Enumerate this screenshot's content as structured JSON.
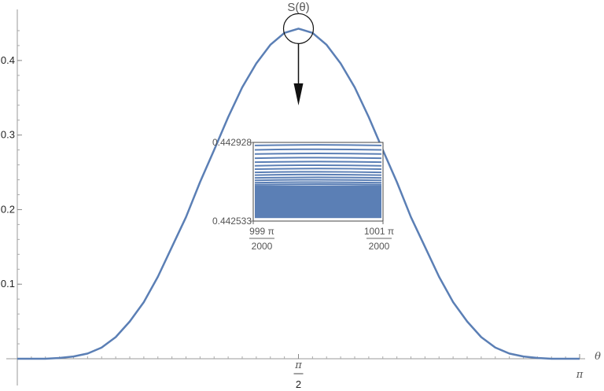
{
  "chart_data": [
    {
      "type": "line",
      "title": "",
      "xlabel": "θ",
      "ylabel": "",
      "xlim": [
        0,
        3.14159
      ],
      "ylim": [
        0,
        0.46
      ],
      "x_ticks": [
        {
          "value": 1.5708,
          "num": "π",
          "den": "2"
        },
        {
          "value": 3.14159,
          "label": "π"
        }
      ],
      "y_ticks": [
        {
          "value": 0.1,
          "label": "0.1"
        },
        {
          "value": 0.2,
          "label": "0.2"
        },
        {
          "value": 0.3,
          "label": "0.3"
        },
        {
          "value": 0.4,
          "label": "0.4"
        }
      ],
      "series": [
        {
          "color": "#5b7fb5",
          "x": [
            0.0,
            0.0785,
            0.1571,
            0.2356,
            0.3142,
            0.3927,
            0.4712,
            0.5498,
            0.6283,
            0.7069,
            0.7854,
            0.864,
            0.9425,
            1.0211,
            1.0996,
            1.1781,
            1.2566,
            1.3352,
            1.4137,
            1.4923,
            1.5708,
            1.6493,
            1.7279,
            1.8064,
            1.885,
            1.9635,
            2.042,
            2.1206,
            2.1991,
            2.2777,
            2.3562,
            2.4347,
            2.5133,
            2.5918,
            2.6704,
            2.7489,
            2.8274,
            2.906,
            2.9845,
            3.0631,
            3.1416
          ],
          "y": [
            0.0,
            0.0,
            0.0,
            0.001,
            0.003,
            0.007,
            0.015,
            0.029,
            0.05,
            0.076,
            0.11,
            0.15,
            0.19,
            0.237,
            0.28,
            0.324,
            0.364,
            0.396,
            0.421,
            0.437,
            0.4427,
            0.437,
            0.421,
            0.396,
            0.364,
            0.324,
            0.28,
            0.237,
            0.19,
            0.15,
            0.11,
            0.076,
            0.05,
            0.029,
            0.015,
            0.007,
            0.003,
            0.001,
            0.0,
            0.0,
            0.0
          ]
        }
      ],
      "annotation": {
        "label": "S(θ)",
        "at": {
          "x": 1.5708,
          "y": 0.4427
        }
      }
    },
    {
      "type": "line",
      "title": "",
      "xlabel": "",
      "ylabel": "",
      "xlim": [
        1.56922,
        1.57237
      ],
      "ylim": [
        0.442533,
        0.442928
      ],
      "x_ticks": [
        {
          "value": 1.56922,
          "num": "999 π",
          "den": "2000"
        },
        {
          "value": 1.57237,
          "num": "1001 π",
          "den": "2000"
        }
      ],
      "y_ticks": [
        {
          "value": 0.442928,
          "label": "0.442928"
        },
        {
          "value": 0.442533,
          "label": "0.442533"
        }
      ],
      "series": [
        {
          "color": "#5b7fb5",
          "y": [
            0.442915,
            0.442893,
            0.442872,
            0.442851,
            0.442831,
            0.442813,
            0.442796,
            0.44278,
            0.442766,
            0.442752,
            0.44274,
            0.442728,
            0.442718
          ]
        },
        {
          "color": "#5b7fb5",
          "band": [
            0.442548,
            0.442712
          ]
        }
      ]
    }
  ]
}
